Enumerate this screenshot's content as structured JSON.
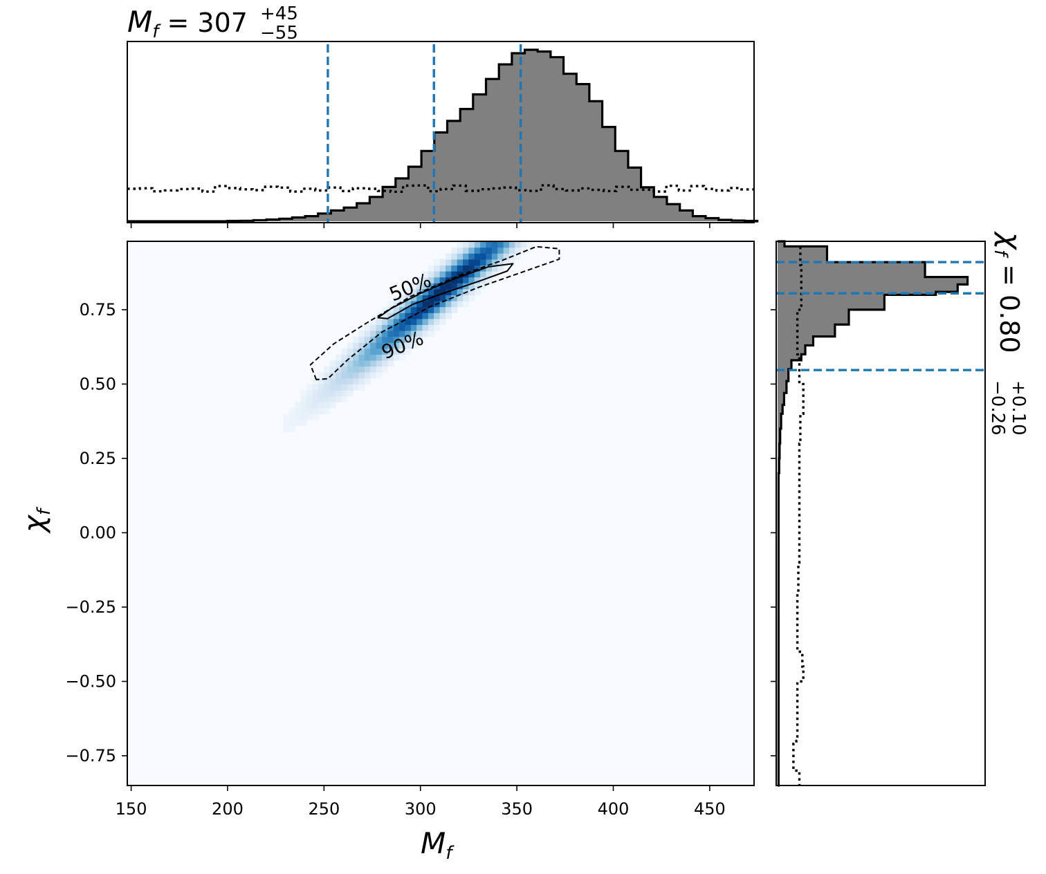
{
  "chart_data": [
    {
      "type": "heatmap",
      "name": "joint-posterior",
      "xlabel": "M_f",
      "ylabel": "χ_f",
      "xlim": [
        148,
        473
      ],
      "ylim": [
        -0.85,
        0.98
      ],
      "xticks": [
        150,
        200,
        250,
        300,
        350,
        400,
        450
      ],
      "yticks": [
        -0.75,
        -0.5,
        -0.25,
        0.0,
        0.25,
        0.5,
        0.75
      ],
      "xtick_labels": [
        "150",
        "200",
        "250",
        "300",
        "350",
        "400",
        "450"
      ],
      "ytick_labels": [
        "−0.75",
        "−0.50",
        "−0.25",
        "0.00",
        "0.25",
        "0.50",
        "0.75"
      ],
      "colormap": "Blues",
      "density_peak": {
        "mean": [
          311,
          0.81
        ],
        "sd_along": 33,
        "sd_across": 0.045,
        "slope": 0.0055
      },
      "contours": [
        {
          "label": "50%",
          "style": "solid",
          "polygon": [
            [
              278,
              0.723
            ],
            [
              285,
              0.755
            ],
            [
              300,
              0.805
            ],
            [
              318,
              0.855
            ],
            [
              335,
              0.894
            ],
            [
              348,
              0.905
            ],
            [
              345,
              0.88
            ],
            [
              330,
              0.845
            ],
            [
              313,
              0.808
            ],
            [
              296,
              0.768
            ],
            [
              283,
              0.72
            ]
          ]
        },
        {
          "label": "90%",
          "style": "dashed",
          "polygon": [
            [
              246,
              0.515
            ],
            [
              243,
              0.565
            ],
            [
              255,
              0.635
            ],
            [
              272,
              0.705
            ],
            [
              295,
              0.795
            ],
            [
              320,
              0.865
            ],
            [
              342,
              0.915
            ],
            [
              360,
              0.962
            ],
            [
              372,
              0.955
            ],
            [
              372,
              0.92
            ],
            [
              350,
              0.87
            ],
            [
              330,
              0.825
            ],
            [
              305,
              0.76
            ],
            [
              280,
              0.675
            ],
            [
              262,
              0.58
            ],
            [
              252,
              0.518
            ]
          ]
        }
      ]
    },
    {
      "type": "histogram",
      "name": "Mf-marginal",
      "title_prefix": "M",
      "title_sub": "f",
      "title_value": "307",
      "title_upper": "+45",
      "title_lower": "−55",
      "bin_start": 200,
      "bin_width": 6.7,
      "posterior": [
        0.002,
        0.003,
        0.006,
        0.01,
        0.015,
        0.022,
        0.03,
        0.045,
        0.063,
        0.08,
        0.105,
        0.142,
        0.2,
        0.25,
        0.318,
        0.41,
        0.518,
        0.585,
        0.655,
        0.74,
        0.83,
        0.915,
        0.98,
        1.0,
        0.99,
        0.957,
        0.86,
        0.8,
        0.7,
        0.55,
        0.41,
        0.313,
        0.198,
        0.142,
        0.1,
        0.063,
        0.03,
        0.018,
        0.008,
        0.004,
        0.002
      ],
      "prior_level": 0.19,
      "prior_jitter": 0.02,
      "quantiles": [
        252,
        307,
        352
      ]
    },
    {
      "type": "histogram",
      "name": "chi-marginal",
      "orientation": "horizontal",
      "title_prefix": "χ",
      "title_sub": "f",
      "title_value": "0.80",
      "title_upper": "+0.10",
      "title_lower": "−0.26",
      "bins": [
        [
          0.963,
          0.98,
          0.035
        ],
        [
          0.91,
          0.963,
          0.25
        ],
        [
          0.86,
          0.91,
          0.745
        ],
        [
          0.835,
          0.86,
          0.96
        ],
        [
          0.81,
          0.835,
          0.91
        ],
        [
          0.8,
          0.81,
          0.8
        ],
        [
          0.75,
          0.8,
          0.54
        ],
        [
          0.7,
          0.75,
          0.36
        ],
        [
          0.66,
          0.7,
          0.29
        ],
        [
          0.63,
          0.66,
          0.18
        ],
        [
          0.6,
          0.63,
          0.14
        ],
        [
          0.58,
          0.6,
          0.12
        ],
        [
          0.55,
          0.58,
          0.07
        ],
        [
          0.51,
          0.55,
          0.055
        ],
        [
          0.47,
          0.51,
          0.045
        ],
        [
          0.43,
          0.47,
          0.033
        ],
        [
          0.4,
          0.43,
          0.025
        ],
        [
          0.35,
          0.4,
          0.018
        ],
        [
          0.3,
          0.35,
          0.013
        ],
        [
          0.25,
          0.3,
          0.01
        ],
        [
          0.2,
          0.25,
          0.008
        ],
        [
          -0.85,
          0.2,
          0.005
        ]
      ],
      "prior_level": 0.11,
      "prior_points": [
        [
          0.962,
          0.115
        ],
        [
          0.9,
          0.12
        ],
        [
          0.84,
          0.12
        ],
        [
          0.75,
          0.1
        ],
        [
          0.6,
          0.11
        ],
        [
          0.5,
          0.13
        ],
        [
          0.4,
          0.115
        ],
        [
          0.3,
          0.11
        ],
        [
          0.1,
          0.11
        ],
        [
          -0.1,
          0.105
        ],
        [
          -0.2,
          0.1
        ],
        [
          -0.35,
          0.1
        ],
        [
          -0.4,
          0.125
        ],
        [
          -0.45,
          0.13
        ],
        [
          -0.5,
          0.1
        ],
        [
          -0.62,
          0.1
        ],
        [
          -0.7,
          0.095
        ],
        [
          -0.71,
          0.08
        ],
        [
          -0.75,
          0.08
        ],
        [
          -0.8,
          0.11
        ],
        [
          -0.85,
          0.11
        ]
      ],
      "quantiles": [
        0.547,
        0.805,
        0.91
      ]
    }
  ]
}
